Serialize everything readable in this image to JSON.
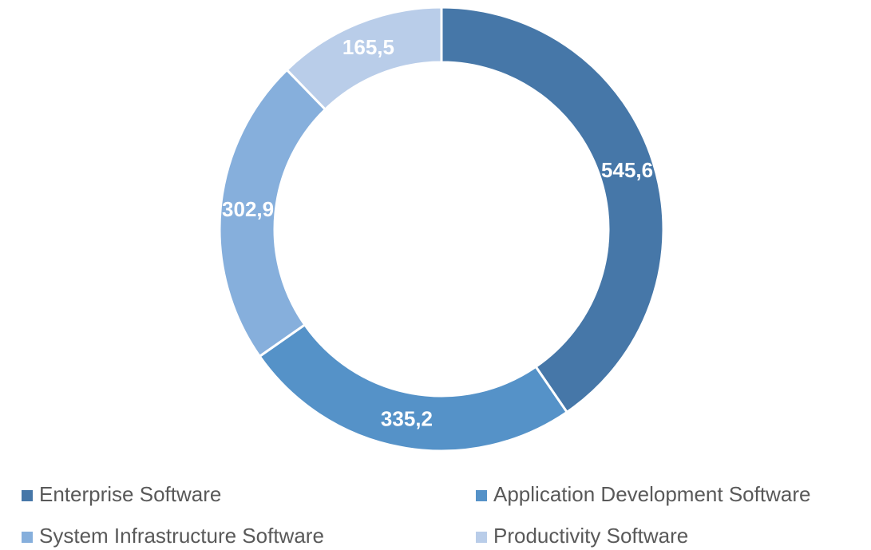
{
  "chart_data": {
    "type": "donut",
    "categories": [
      "Enterprise Software",
      "Application Development Software",
      "System Infrastructure Software",
      "Productivity Software"
    ],
    "values": [
      545.6,
      335.2,
      302.9,
      165.5
    ],
    "value_labels": [
      "545,6",
      "335,2",
      "302,9",
      "165,5"
    ],
    "colors": [
      "#4677a8",
      "#5592c8",
      "#86afdc",
      "#b9cde9"
    ]
  }
}
